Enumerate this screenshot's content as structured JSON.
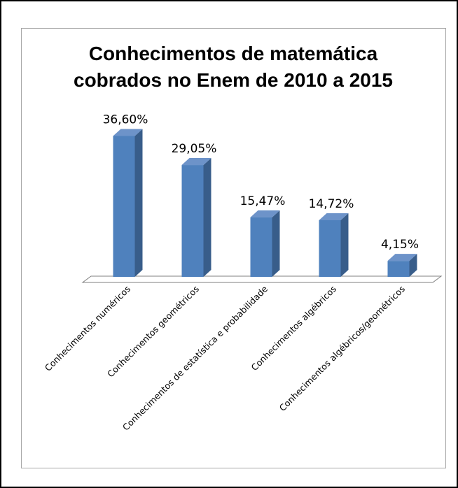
{
  "chart_data": {
    "type": "bar",
    "title_lines": [
      "Conhecimentos de matemática",
      "cobrados no Enem de 2010 a 2015"
    ],
    "categories": [
      "Conhecimentos numéricos",
      "Conhecimentos geométricos",
      "Conhecimentos de estatística e probabilidade",
      "Conhecimentos algébricos",
      "Conhecimentos algébricos/geométricos"
    ],
    "values": [
      36.6,
      29.05,
      15.47,
      14.72,
      4.15
    ],
    "value_labels": [
      "36,60%",
      "29,05%",
      "15,47%",
      "14,72%",
      "4,15%"
    ],
    "unit": "%",
    "ylim": [
      0,
      40
    ],
    "grid": false,
    "legend": "none",
    "style": "3d-column",
    "colors": {
      "bar_front": "#4f81bd",
      "bar_side": "#385d8a",
      "bar_top": "#6d93c9",
      "floor": "#ffffff",
      "floor_border": "#7f7f7f"
    }
  }
}
